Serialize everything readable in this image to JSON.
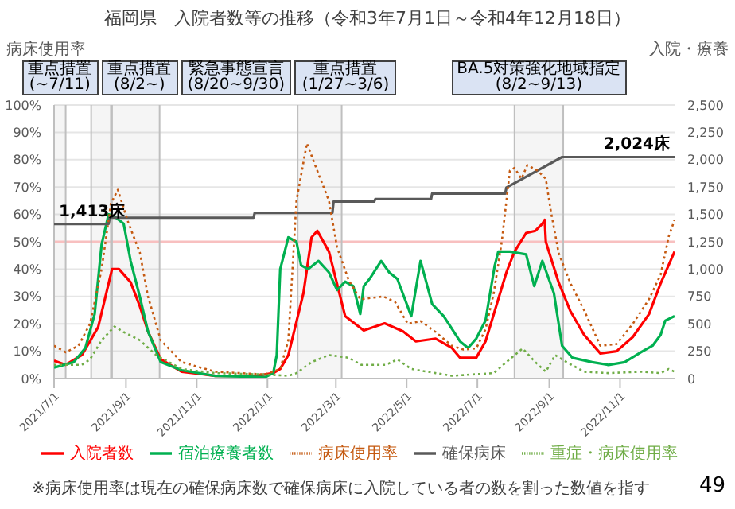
{
  "chart_data": {
    "type": "line",
    "title": "福岡県　入院者数等の推移（令和3年7月1日～令和4年12月18日）",
    "ylabel": "病床使用率",
    "y2label": "入院・療養",
    "xlim": [
      "2021-07-01",
      "2022-12-18"
    ],
    "xticks": [
      {
        "value": "2021-07-01",
        "label": "2021/7/1"
      },
      {
        "value": "2021-09-01",
        "label": "2021/9/1"
      },
      {
        "value": "2021-11-01",
        "label": "2021/11/1"
      },
      {
        "value": "2022-01-01",
        "label": "2022/1/1"
      },
      {
        "value": "2022-03-01",
        "label": "2022/3/1"
      },
      {
        "value": "2022-05-01",
        "label": "2022/5/1"
      },
      {
        "value": "2022-07-01",
        "label": "2022/7/1"
      },
      {
        "value": "2022-09-01",
        "label": "2022/9/1"
      },
      {
        "value": "2022-11-01",
        "label": "2022/11/1"
      }
    ],
    "ylim": [
      0,
      100
    ],
    "yticks": [
      {
        "value": 0,
        "label": "0%"
      },
      {
        "value": 10,
        "label": "10%"
      },
      {
        "value": 20,
        "label": "20%"
      },
      {
        "value": 30,
        "label": "30%"
      },
      {
        "value": 40,
        "label": "40%"
      },
      {
        "value": 50,
        "label": "50%"
      },
      {
        "value": 60,
        "label": "60%"
      },
      {
        "value": 70,
        "label": "70%"
      },
      {
        "value": 80,
        "label": "80%"
      },
      {
        "value": 90,
        "label": "90%"
      },
      {
        "value": 100,
        "label": "100%"
      }
    ],
    "y2lim": [
      0,
      2500
    ],
    "y2ticks": [
      {
        "value": 0,
        "label": "0"
      },
      {
        "value": 250,
        "label": "250"
      },
      {
        "value": 500,
        "label": "500"
      },
      {
        "value": 750,
        "label": "750"
      },
      {
        "value": 1000,
        "label": "1,000"
      },
      {
        "value": 1250,
        "label": "1,250"
      },
      {
        "value": 1500,
        "label": "1,500"
      },
      {
        "value": 1750,
        "label": "1,750"
      },
      {
        "value": 2000,
        "label": "2,000"
      },
      {
        "value": 2250,
        "label": "2,250"
      },
      {
        "value": 2500,
        "label": "2,500"
      }
    ],
    "grid": "y",
    "legend": "bottom",
    "marker": "none",
    "series": [
      {
        "name": "入院者数",
        "color": "#ff0000",
        "axis": "y2",
        "line_style": "solid",
        "x": [
          "2021-07-01",
          "2021-07-11",
          "2021-07-25",
          "2021-08-08",
          "2021-08-20",
          "2021-08-26",
          "2021-09-05",
          "2021-09-13",
          "2021-09-20",
          "2021-10-01",
          "2021-10-19",
          "2021-11-17",
          "2021-12-22",
          "2022-01-06",
          "2022-01-12",
          "2022-01-19",
          "2022-02-01",
          "2022-02-08",
          "2022-02-13",
          "2022-02-23",
          "2022-03-09",
          "2022-03-25",
          "2022-04-12",
          "2022-04-28",
          "2022-05-09",
          "2022-05-26",
          "2022-06-09",
          "2022-06-16",
          "2022-06-30",
          "2022-07-08",
          "2022-07-16",
          "2022-07-26",
          "2022-08-02",
          "2022-08-12",
          "2022-08-20",
          "2022-08-26",
          "2022-08-28",
          "2022-08-29",
          "2022-09-09",
          "2022-09-19",
          "2022-10-01",
          "2022-10-15",
          "2022-10-29",
          "2022-11-12",
          "2022-11-26",
          "2022-12-06",
          "2022-12-18"
        ],
        "values": [
          164,
          126,
          215,
          470,
          1000,
          1000,
          880,
          660,
          430,
          177,
          63,
          25,
          25,
          50,
          88,
          215,
          780,
          1290,
          1350,
          1160,
          570,
          440,
          505,
          430,
          340,
          365,
          280,
          190,
          190,
          340,
          620,
          970,
          1160,
          1330,
          1350,
          1415,
          1450,
          1250,
          880,
          620,
          400,
          230,
          250,
          380,
          590,
          870,
          1160
        ]
      },
      {
        "name": "宿泊療養者数",
        "color": "#00b050",
        "axis": "y2",
        "line_style": "solid",
        "x": [
          "2021-07-01",
          "2021-07-18",
          "2021-07-28",
          "2021-08-05",
          "2021-08-11",
          "2021-08-17",
          "2021-08-22",
          "2021-08-30",
          "2021-09-05",
          "2021-09-13",
          "2021-09-20",
          "2021-10-01",
          "2021-10-19",
          "2021-11-17",
          "2021-12-30",
          "2022-01-06",
          "2022-01-09",
          "2022-01-12",
          "2022-01-19",
          "2022-01-26",
          "2022-01-30",
          "2022-02-05",
          "2022-02-14",
          "2022-02-23",
          "2022-03-02",
          "2022-03-09",
          "2022-03-16",
          "2022-03-22",
          "2022-03-25",
          "2022-03-30",
          "2022-04-09",
          "2022-04-16",
          "2022-04-23",
          "2022-05-05",
          "2022-05-13",
          "2022-05-23",
          "2022-06-02",
          "2022-06-16",
          "2022-06-23",
          "2022-06-30",
          "2022-07-08",
          "2022-07-16",
          "2022-07-19",
          "2022-07-29",
          "2022-08-12",
          "2022-08-19",
          "2022-08-26",
          "2022-09-05",
          "2022-09-12",
          "2022-09-21",
          "2022-10-08",
          "2022-10-22",
          "2022-11-05",
          "2022-11-19",
          "2022-11-29",
          "2022-12-06",
          "2022-12-10",
          "2022-12-18"
        ],
        "values": [
          100,
          150,
          280,
          590,
          1225,
          1500,
          1480,
          1415,
          1075,
          745,
          430,
          150,
          76,
          25,
          13,
          50,
          215,
          1000,
          1290,
          1250,
          1035,
          1000,
          1075,
          970,
          810,
          885,
          845,
          590,
          845,
          910,
          1075,
          970,
          910,
          570,
          1075,
          680,
          570,
          340,
          280,
          365,
          530,
          1035,
          1160,
          1160,
          1135,
          845,
          1075,
          780,
          300,
          190,
          150,
          125,
          150,
          240,
          300,
          400,
          530,
          570
        ]
      },
      {
        "name": "確保病床",
        "color": "#595959",
        "axis": "y2",
        "line_style": "solid",
        "x": [
          "2021-07-01",
          "2021-08-17",
          "2021-08-18",
          "2021-12-20",
          "2021-12-21",
          "2022-02-26",
          "2022-02-27",
          "2022-04-03",
          "2022-04-04",
          "2022-05-22",
          "2022-05-23",
          "2022-07-25",
          "2022-07-26",
          "2022-09-12",
          "2022-12-18"
        ],
        "values": [
          1413,
          1413,
          1470,
          1470,
          1515,
          1515,
          1617,
          1617,
          1640,
          1640,
          1690,
          1690,
          1745,
          2024,
          2024
        ]
      },
      {
        "name": "病床使用率",
        "color": "#c55a11",
        "line_style": "dotted",
        "x": [
          "2021-07-01",
          "2021-07-11",
          "2021-07-22",
          "2021-08-01",
          "2021-08-11",
          "2021-08-19",
          "2021-08-25",
          "2021-09-03",
          "2021-09-13",
          "2021-09-20",
          "2021-10-01",
          "2021-10-19",
          "2021-11-17",
          "2021-12-30",
          "2022-01-12",
          "2022-01-19",
          "2022-01-26",
          "2022-02-04",
          "2022-02-12",
          "2022-02-23",
          "2022-03-02",
          "2022-03-12",
          "2022-03-22",
          "2022-04-11",
          "2022-04-21",
          "2022-05-02",
          "2022-05-13",
          "2022-05-26",
          "2022-06-09",
          "2022-06-19",
          "2022-06-30",
          "2022-07-08",
          "2022-07-15",
          "2022-07-22",
          "2022-07-29",
          "2022-08-02",
          "2022-08-08",
          "2022-08-13",
          "2022-08-22",
          "2022-08-29",
          "2022-09-02",
          "2022-09-09",
          "2022-09-19",
          "2022-10-01",
          "2022-10-15",
          "2022-10-29",
          "2022-11-12",
          "2022-11-26",
          "2022-12-06",
          "2022-12-13",
          "2022-12-18"
        ],
        "values": [
          12,
          9.6,
          12,
          20,
          40,
          64,
          69,
          57,
          46,
          30,
          14,
          6,
          2.5,
          1.5,
          3.5,
          14,
          65,
          86,
          77,
          65,
          48,
          36,
          29,
          30,
          28,
          20,
          21,
          17,
          12,
          10.6,
          11,
          18,
          31,
          50,
          76,
          77,
          73,
          78,
          76,
          73,
          62,
          46,
          35,
          25,
          12,
          12.6,
          20,
          29,
          38,
          52,
          58
        ]
      },
      {
        "name": "重症・病床使用率",
        "color": "#70ad47",
        "line_style": "dotted",
        "x": [
          "2021-07-01",
          "2021-07-25",
          "2021-08-01",
          "2021-08-11",
          "2021-08-22",
          "2021-08-30",
          "2021-09-13",
          "2021-09-27",
          "2021-10-19",
          "2021-11-17",
          "2021-12-30",
          "2022-01-19",
          "2022-01-26",
          "2022-02-08",
          "2022-02-23",
          "2022-03-12",
          "2022-03-23",
          "2022-04-13",
          "2022-04-23",
          "2022-05-05",
          "2022-05-26",
          "2022-06-09",
          "2022-07-15",
          "2022-07-26",
          "2022-08-09",
          "2022-08-20",
          "2022-08-29",
          "2022-09-06",
          "2022-09-16",
          "2022-10-01",
          "2022-10-22",
          "2022-11-19",
          "2022-12-06",
          "2022-12-13",
          "2022-12-18"
        ],
        "values": [
          5,
          5,
          7,
          14,
          19,
          17,
          14,
          8.6,
          3.5,
          2,
          1.5,
          1,
          2,
          6,
          8.6,
          7.6,
          5,
          5,
          7,
          3.5,
          2,
          1,
          2,
          6,
          11,
          6,
          2.5,
          8.6,
          6,
          2.5,
          2,
          2.5,
          2,
          3.5,
          2.5
        ]
      }
    ],
    "ref_lines": [
      {
        "axis": "y",
        "value": 50,
        "color": "#f8c0c0"
      }
    ],
    "bands": [
      {
        "axis": "x",
        "from": "2021-07-01",
        "to": "2021-07-11",
        "label": "重点措置\n(~7/11)",
        "color": "#bfbfbf"
      },
      {
        "axis": "x",
        "from": "2021-08-02",
        "to": "2021-08-19",
        "label": "重点措置\n(8/2~)",
        "color": "#bfbfbf"
      },
      {
        "axis": "x",
        "from": "2021-08-20",
        "to": "2021-09-30",
        "label": "緊急事態宣言\n(8/20~9/30)",
        "color": "#bfbfbf"
      },
      {
        "axis": "x",
        "from": "2022-01-27",
        "to": "2022-03-06",
        "label": "重点措置\n(1/27~3/6)",
        "color": "#bfbfbf"
      },
      {
        "axis": "x",
        "from": "2022-08-02",
        "to": "2022-09-13",
        "label": "BA.5対策強化地域指定\n(8/2~9/13)",
        "color": "#bfbfbf"
      }
    ],
    "annotations": [
      {
        "text": "1,413床",
        "x": "2021-07-01",
        "y": 56.52
      },
      {
        "text": "2,024床",
        "x": "2022-12-18",
        "y": 80.96
      },
      "※病床使用率は現在の確保病床数で確保病床に入院している者の数を割った数値を指す",
      "49"
    ]
  }
}
